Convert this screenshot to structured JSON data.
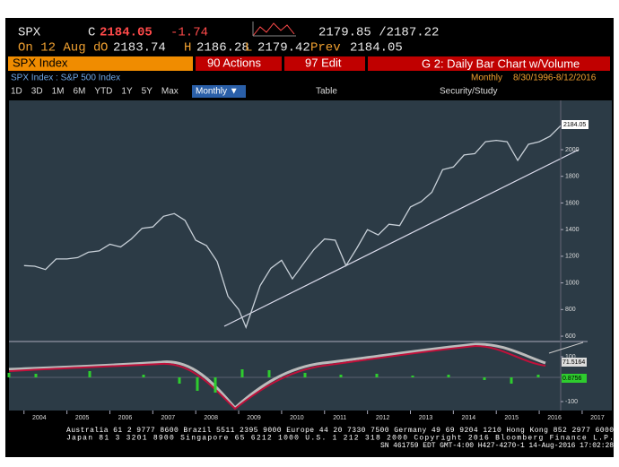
{
  "header": {
    "symbol": "SPX",
    "last_label": "C",
    "last": "2184.05",
    "change": "-1.74",
    "bid_ask": "2179.85 /2187.22",
    "date": "On 12 Aug d",
    "open_label": "O",
    "open": "2183.74",
    "high_label": "H",
    "high": "2186.28",
    "low_label": "L",
    "low": "2179.42",
    "prev_label": "Prev",
    "prev": "2184.05"
  },
  "menu": {
    "security": "SPX Index",
    "actions": "90 Actions",
    "edit": "97 Edit",
    "chart_name": "G 2: Daily Bar Chart w/Volume",
    "description": "SPX Index : S&P 500 Index",
    "period": "Monthly",
    "range": "8/30/1996-8/12/2016"
  },
  "toolbar": {
    "buttons": [
      "1D",
      "3D",
      "1M",
      "6M",
      "YTD",
      "1Y",
      "5Y",
      "Max"
    ],
    "frequency": "Monthly ▼",
    "table": "Table",
    "study": "Security/Study"
  },
  "chart": {
    "type": "line",
    "x": [
      2004,
      2004.25,
      2004.5,
      2004.75,
      2005,
      2005.25,
      2005.5,
      2005.75,
      2006,
      2006.25,
      2006.5,
      2006.75,
      2007,
      2007.25,
      2007.5,
      2007.75,
      2008,
      2008.25,
      2008.5,
      2008.75,
      2009,
      2009.17,
      2009.5,
      2009.75,
      2010,
      2010.25,
      2010.5,
      2010.75,
      2011,
      2011.25,
      2011.5,
      2011.75,
      2012,
      2012.25,
      2012.5,
      2012.75,
      2013,
      2013.25,
      2013.5,
      2013.75,
      2014,
      2014.25,
      2014.5,
      2014.75,
      2015,
      2015.25,
      2015.5,
      2015.75,
      2016,
      2016.25,
      2016.5
    ],
    "values": [
      1130,
      1125,
      1100,
      1180,
      1180,
      1190,
      1230,
      1240,
      1290,
      1270,
      1330,
      1410,
      1420,
      1500,
      1520,
      1470,
      1320,
      1280,
      1160,
      900,
      800,
      667,
      980,
      1110,
      1170,
      1030,
      1140,
      1250,
      1330,
      1320,
      1130,
      1260,
      1400,
      1360,
      1440,
      1430,
      1570,
      1610,
      1680,
      1850,
      1870,
      1960,
      1970,
      2060,
      2070,
      2060,
      1920,
      2040,
      2060,
      2100,
      2180
    ],
    "color": "#c8d0d8",
    "xlim": [
      2003.65,
      2016.5
    ],
    "ylim": [
      560,
      2370
    ],
    "yticks": [
      600,
      800,
      1000,
      1200,
      1400,
      1600,
      1800,
      2000
    ],
    "xticks": [
      2004,
      2005,
      2006,
      2007,
      2008,
      2009,
      2010,
      2011,
      2012,
      2013,
      2014,
      2015,
      2016,
      2017
    ],
    "last_tag": "2184.05",
    "y2lim": [
      -128,
      160
    ],
    "y2ticks": [
      100,
      -100
    ],
    "study_tags": [
      "71.5164",
      "0.8756"
    ]
  },
  "footer": [
    "Australia 61 2 9777 8600 Brazil 5511 2395 9000 Europe 44 20 7330 7500 Germany 49 69 9204 1210 Hong Kong 852 2977 6000",
    "Japan 81 3 3201 8900        Singapore 65 6212 1000        U.S. 1 212 318 2000        Copyright 2016 Bloomberg Finance L.P.",
    "SN 461759 EDT  GMT-4:00 H427-4270-1 14-Aug-2016 17:02:28"
  ]
}
